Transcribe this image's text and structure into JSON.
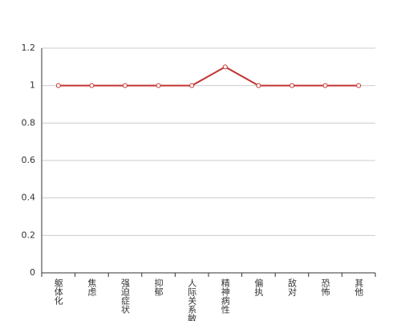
{
  "chart_data": {
    "type": "line",
    "categories": [
      "躯体化",
      "焦虑",
      "强迫症状",
      "抑郁",
      "人际关系敏感",
      "精神病性",
      "偏执",
      "敌对",
      "恐怖",
      "其他"
    ],
    "series": [
      {
        "color": "#c23531",
        "values": [
          1,
          1,
          1,
          1,
          1,
          1.1,
          1,
          1,
          1,
          1
        ]
      }
    ],
    "ylim": [
      0,
      1.2
    ],
    "yticks": [
      0,
      0.2,
      0.4,
      0.6,
      0.8,
      1,
      1.2
    ],
    "grid": true
  }
}
